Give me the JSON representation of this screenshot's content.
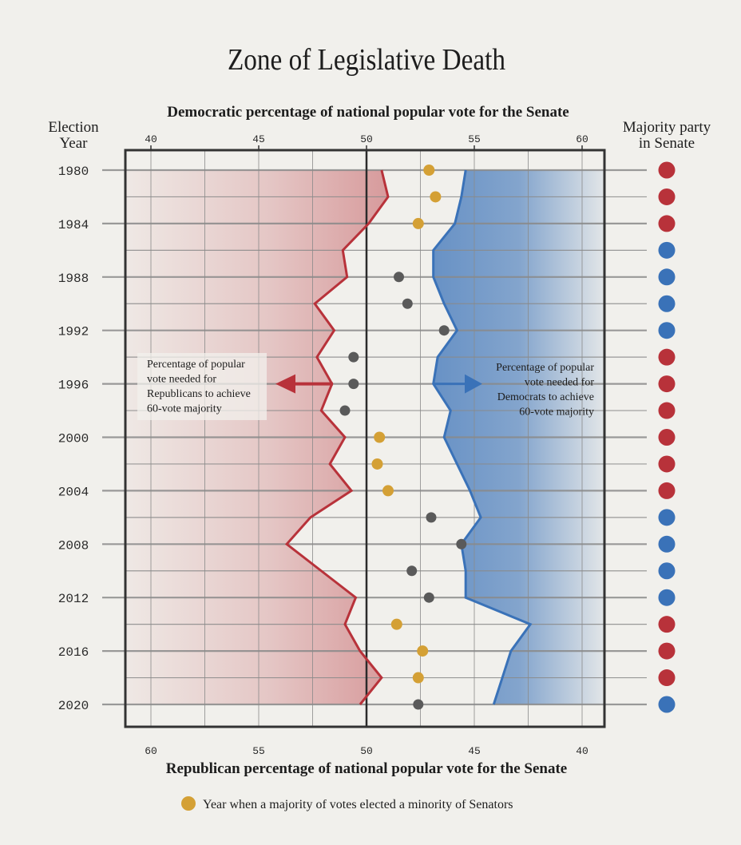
{
  "chart_data": {
    "type": "line",
    "title": "Zone of Legislative Death",
    "xlabel_top": "Democratic percentage of national popular vote for the Senate",
    "xlabel_bottom": "Republican percentage of national popular vote for the Senate",
    "ylabel": "Election Year",
    "right_label": "Majority party in Senate",
    "xlim": [
      38.9,
      61.1
    ],
    "x_ticks_top": [
      "40",
      "45",
      "50",
      "55",
      "60"
    ],
    "x_ticks_bottom": [
      "60",
      "55",
      "50",
      "45",
      "40"
    ],
    "y_ticks": [
      "1980",
      "1984",
      "1988",
      "1992",
      "1996",
      "2000",
      "2004",
      "2008",
      "2012",
      "2016",
      "2020"
    ],
    "grid": true,
    "years": [
      1980,
      1982,
      1984,
      1986,
      1988,
      1990,
      1992,
      1994,
      1996,
      1998,
      2000,
      2002,
      2004,
      2006,
      2008,
      2010,
      2012,
      2014,
      2016,
      2018,
      2020
    ],
    "series": [
      {
        "key": "republican_threshold",
        "color": "#b8323a",
        "values": [
          50.7,
          51.0,
          50.1,
          48.9,
          49.1,
          47.6,
          48.5,
          47.7,
          48.4,
          47.9,
          49.0,
          48.3,
          49.3,
          47.4,
          46.3,
          47.9,
          49.5,
          49.0,
          49.7,
          50.7,
          49.7
        ]
      },
      {
        "key": "democratic_threshold",
        "color": "#3a72b8",
        "values": [
          54.6,
          54.4,
          54.1,
          53.1,
          53.1,
          53.6,
          54.2,
          53.3,
          53.1,
          53.9,
          53.6,
          54.2,
          54.8,
          55.3,
          54.4,
          54.6,
          54.6,
          57.6,
          56.7,
          56.3,
          55.9
        ]
      },
      {
        "key": "democratic_vote_share",
        "values": [
          52.9,
          53.2,
          52.4,
          null,
          51.5,
          51.9,
          53.6,
          49.4,
          49.4,
          49.0,
          50.6,
          50.5,
          51.0,
          53.0,
          54.4,
          52.1,
          52.9,
          51.4,
          52.6,
          52.4,
          52.4
        ],
        "minority_win": [
          true,
          true,
          true,
          false,
          false,
          false,
          false,
          false,
          false,
          false,
          true,
          true,
          true,
          false,
          false,
          false,
          false,
          true,
          true,
          true,
          false
        ]
      }
    ],
    "majority_party": [
      "R",
      "R",
      "R",
      "D",
      "D",
      "D",
      "D",
      "R",
      "R",
      "R",
      "R",
      "R",
      "R",
      "D",
      "D",
      "D",
      "D",
      "R",
      "R",
      "R",
      "D"
    ],
    "annotations": {
      "left": [
        "Percentage of popular",
        "vote needed for",
        "Republicans to achieve",
        "60-vote majority"
      ],
      "right": [
        "Percentage of popular",
        "vote needed for",
        "Democrats to achieve",
        "60-vote majority"
      ]
    },
    "legend": "Year when a majority of  votes elected a minority of Senators",
    "colors": {
      "republican": "#b8323a",
      "democrat": "#3a72b8",
      "minority_win": "#d4a035",
      "other_dot": "#5a5a5a",
      "background": "#f1f0ec"
    }
  }
}
